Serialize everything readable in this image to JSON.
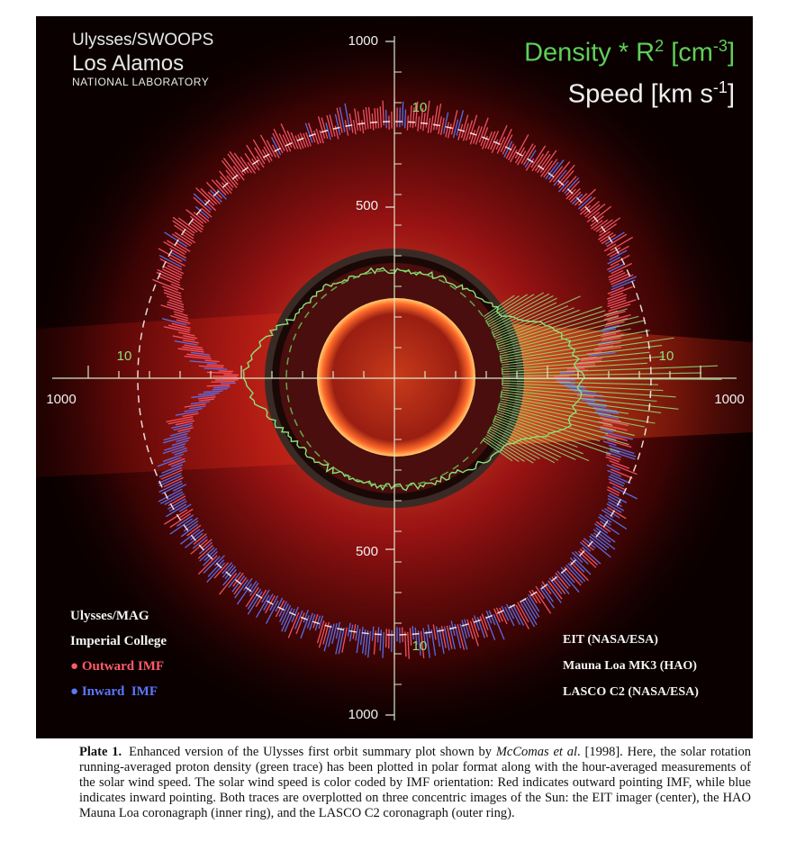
{
  "figure": {
    "credits_top_left": {
      "line1": "Ulysses/SWOOPS",
      "line2": "Los Alamos",
      "line3": "NATIONAL LABORATORY"
    },
    "legend_top_right": {
      "density_label": "Density * R",
      "density_sup": "2",
      "density_unit_open": " [cm",
      "density_unit_sup": "-3",
      "density_unit_close": "]",
      "speed_label": "Speed [km s",
      "speed_unit_sup": "-1",
      "speed_unit_close": "]"
    },
    "credits_bottom_left": {
      "line1": "Ulysses/MAG",
      "line2": "Imperial College",
      "outward": "Outward IMF",
      "inward": "Inward  IMF"
    },
    "credits_bottom_right": {
      "line1": "EIT (NASA/ESA)",
      "line2": "Mauna Loa MK3 (HAO)",
      "line3": "LASCO C2 (NASA/ESA)"
    },
    "colors": {
      "outward_imf": "#ff5a6a",
      "inward_imf": "#5a78ff",
      "density_trace": "#8fe07a",
      "axis": "#d8e8c8"
    }
  },
  "chart_data": {
    "type": "polar",
    "speed_axis": {
      "unit": "km s-1",
      "ticks": [
        "500",
        "500",
        "1000",
        "1000",
        "1000",
        "1000"
      ],
      "range": [
        0,
        1000
      ]
    },
    "density_axis": {
      "unit": "cm-3",
      "ticks": [
        "10",
        "10",
        "10",
        "10"
      ],
      "range": [
        0,
        10
      ]
    },
    "series": [
      {
        "name": "Speed",
        "color_coding": "IMF orientation",
        "polar_points_deg_kms": [
          [
            90,
            770
          ],
          [
            75,
            760
          ],
          [
            60,
            760
          ],
          [
            45,
            770
          ],
          [
            30,
            760
          ],
          [
            20,
            700
          ],
          [
            10,
            650
          ],
          [
            0,
            500
          ],
          [
            -10,
            640
          ],
          [
            -20,
            700
          ],
          [
            -30,
            760
          ],
          [
            -45,
            770
          ],
          [
            -60,
            780
          ],
          [
            -75,
            770
          ],
          [
            -90,
            770
          ],
          [
            -105,
            770
          ],
          [
            -120,
            760
          ],
          [
            -135,
            760
          ],
          [
            -150,
            740
          ],
          [
            -160,
            690
          ],
          [
            -170,
            620
          ],
          [
            180,
            480
          ],
          [
            170,
            620
          ],
          [
            160,
            700
          ],
          [
            150,
            740
          ],
          [
            135,
            760
          ],
          [
            120,
            770
          ],
          [
            105,
            760
          ]
        ]
      },
      {
        "name": "Density * R2",
        "color": "green",
        "polar_points_deg_cm3": [
          [
            90,
            3.2
          ],
          [
            60,
            3.4
          ],
          [
            30,
            4.5
          ],
          [
            15,
            8.0
          ],
          [
            0,
            9.0
          ],
          [
            -15,
            8.5
          ],
          [
            -30,
            4.8
          ],
          [
            -60,
            3.5
          ],
          [
            -90,
            3.3
          ],
          [
            -120,
            3.4
          ],
          [
            -150,
            4.0
          ],
          [
            -170,
            5.5
          ],
          [
            180,
            6.5
          ],
          [
            170,
            5.8
          ],
          [
            150,
            4.0
          ],
          [
            120,
            3.5
          ]
        ]
      }
    ]
  },
  "caption": {
    "plate": "Plate 1.",
    "text_before": "Enhanced version of the Ulysses first orbit summary plot shown by ",
    "cite_author": "McComas et al",
    "text_after": ". [1998]. Here, the solar rotation running-averaged proton density (green trace) has been plotted in polar format along with the hour-averaged measurements of the solar wind speed. The solar wind speed is color coded by IMF orientation: Red indicates outward pointing IMF, while blue indicates inward pointing. Both traces are overplotted on three concentric images of the Sun: the EIT imager (center), the HAO Mauna Loa coronagraph (inner ring), and the LASCO C2 coronagraph (outer ring)."
  }
}
